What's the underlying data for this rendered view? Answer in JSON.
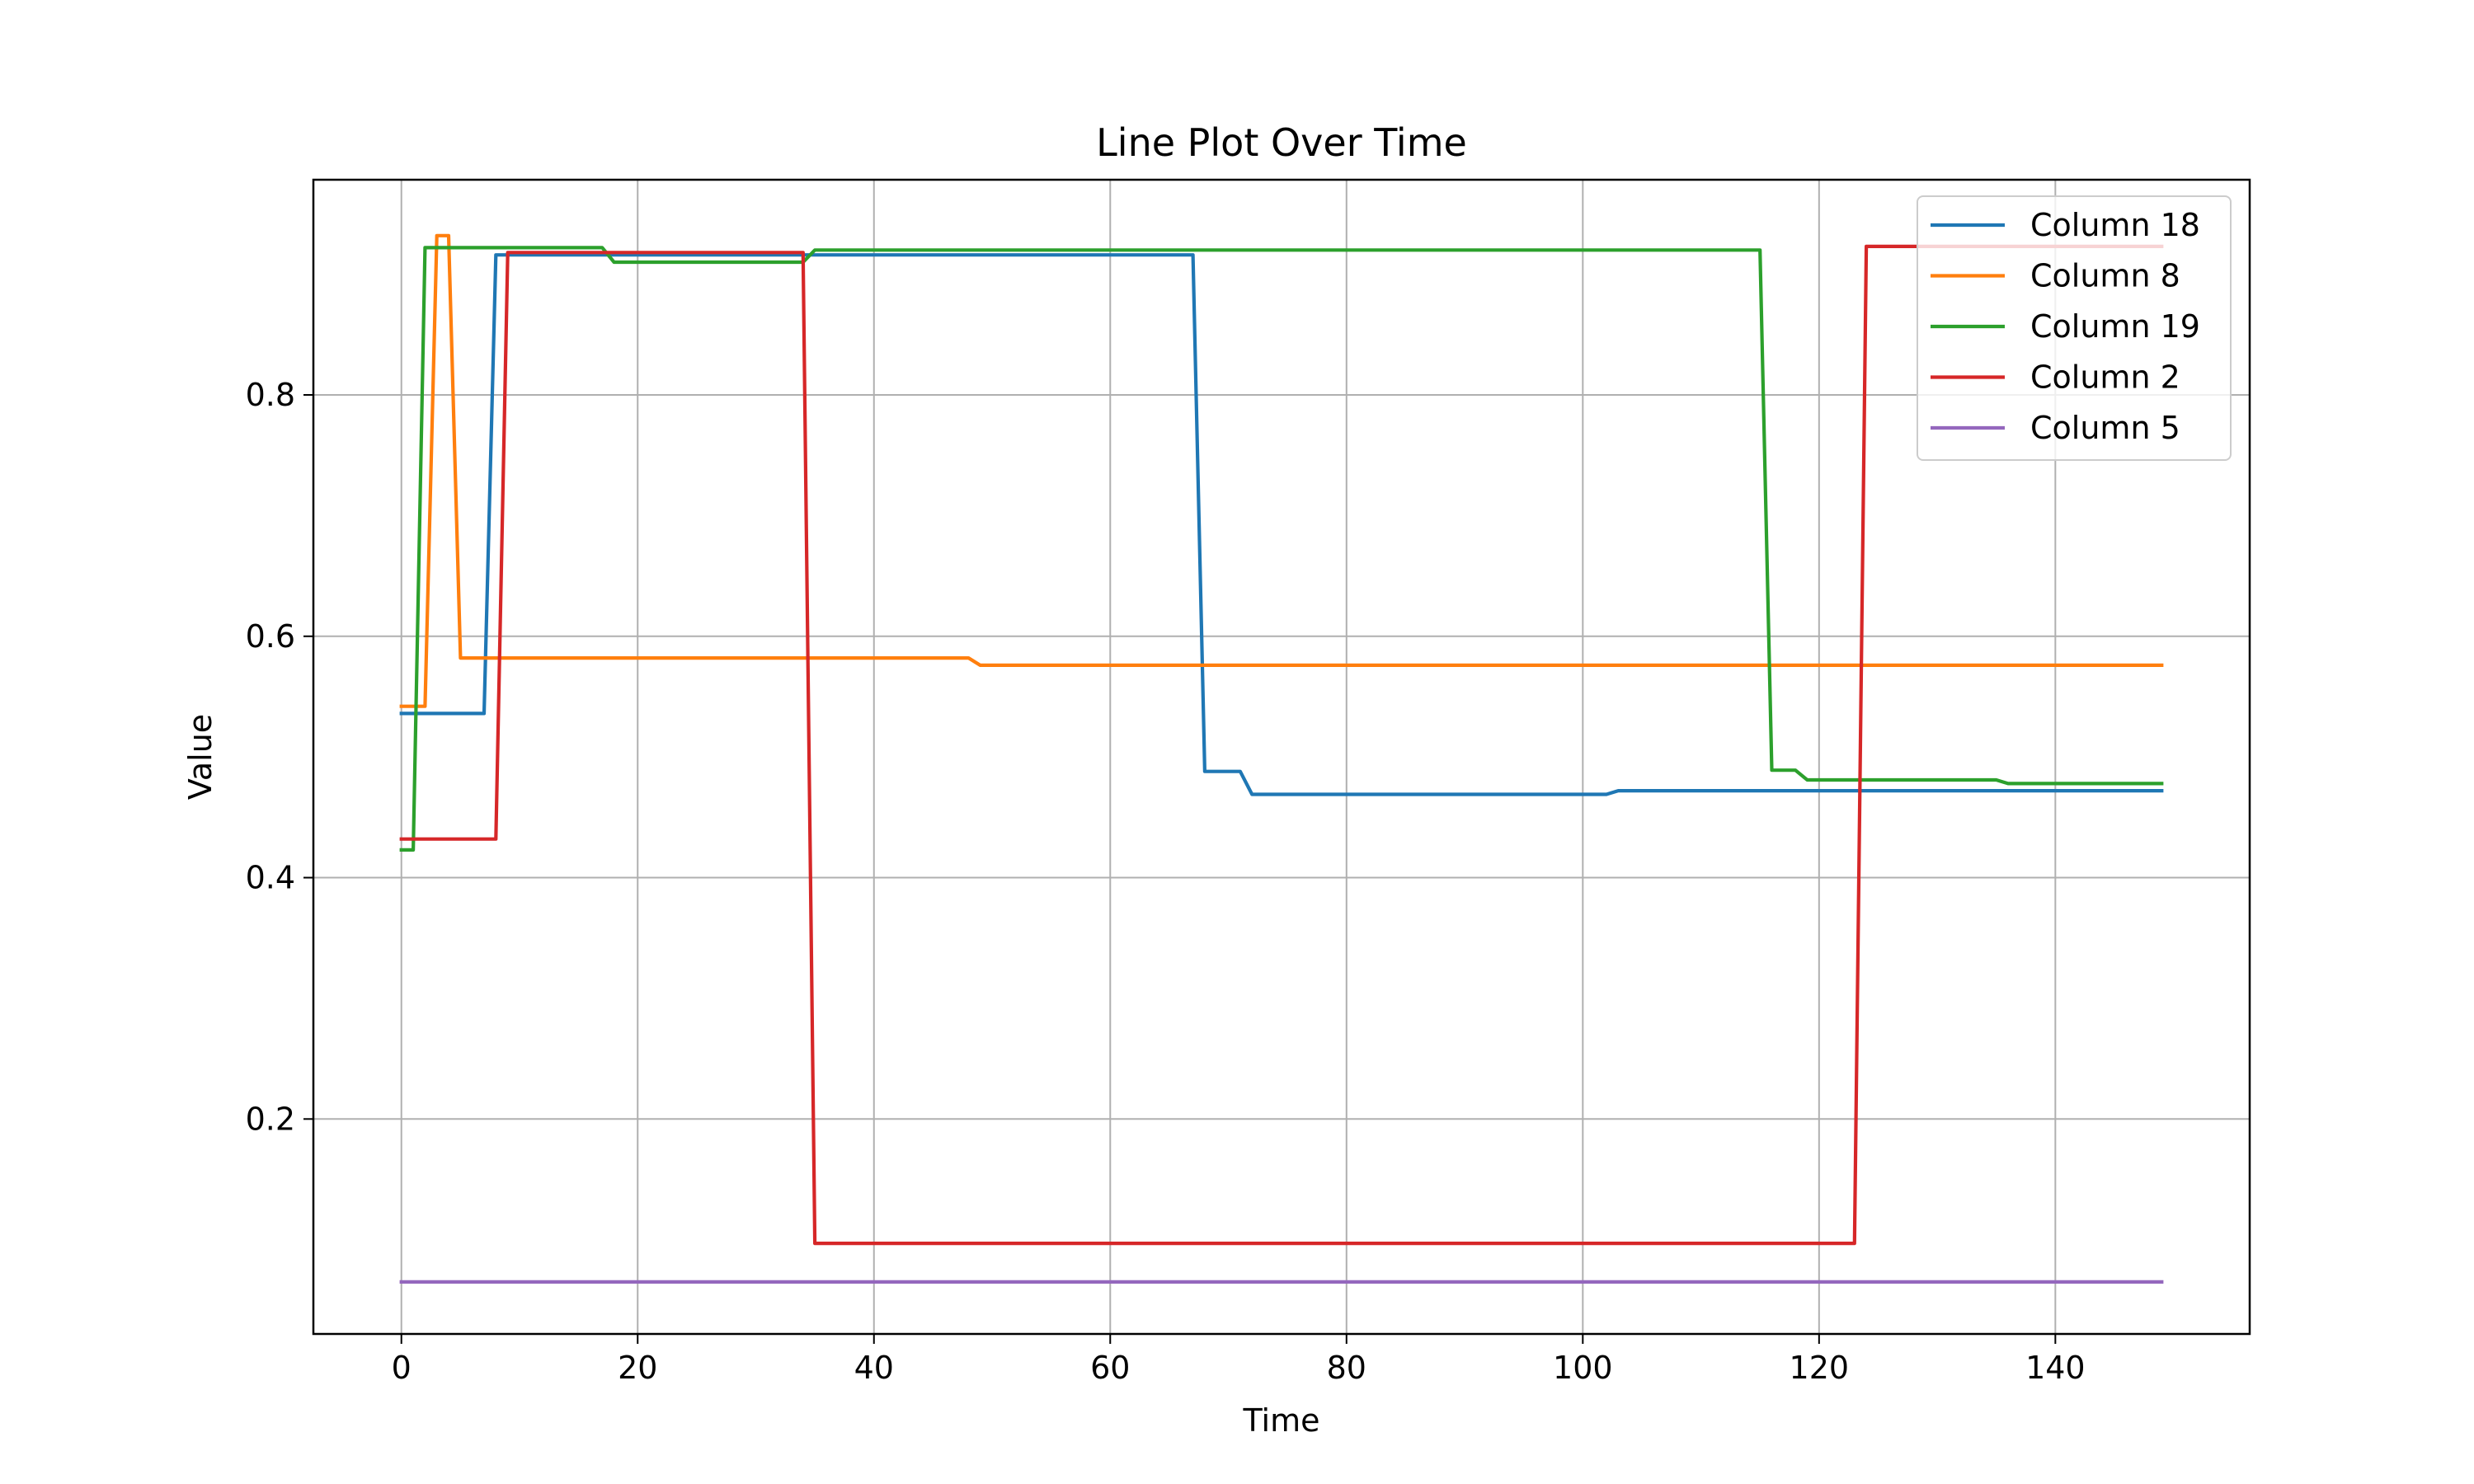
{
  "chart_data": {
    "type": "line",
    "title": "Line Plot Over Time",
    "xlabel": "Time",
    "ylabel": "Value",
    "xlim": [
      -7.45,
      156.45
    ],
    "ylim": [
      0.0219,
      0.9783
    ],
    "xticks": [
      0,
      20,
      40,
      60,
      80,
      100,
      120,
      140
    ],
    "xtick_labels": [
      "0",
      "20",
      "40",
      "60",
      "80",
      "100",
      "120",
      "140"
    ],
    "yticks": [
      0.2,
      0.4,
      0.6,
      0.8
    ],
    "ytick_labels": [
      "0.2",
      "0.4",
      "0.6",
      "0.8"
    ],
    "grid": true,
    "legend": "top-right",
    "series": [
      {
        "name": "Column 18",
        "color": "#1f77b4",
        "points": [
          [
            0,
            0.536
          ],
          [
            7,
            0.536
          ],
          [
            8,
            0.916
          ],
          [
            67,
            0.916
          ],
          [
            68,
            0.488
          ],
          [
            71,
            0.488
          ],
          [
            72,
            0.469
          ],
          [
            102,
            0.469
          ],
          [
            103,
            0.472
          ],
          [
            149,
            0.472
          ]
        ]
      },
      {
        "name": "Column 8",
        "color": "#ff7f0e",
        "points": [
          [
            0,
            0.542
          ],
          [
            2,
            0.542
          ],
          [
            3,
            0.932
          ],
          [
            4,
            0.932
          ],
          [
            5,
            0.582
          ],
          [
            48,
            0.582
          ],
          [
            49,
            0.576
          ],
          [
            149,
            0.576
          ]
        ]
      },
      {
        "name": "Column 19",
        "color": "#2ca02c",
        "points": [
          [
            0,
            0.423
          ],
          [
            1,
            0.423
          ],
          [
            2,
            0.922
          ],
          [
            17,
            0.922
          ],
          [
            18,
            0.91
          ],
          [
            34,
            0.91
          ],
          [
            35,
            0.92
          ],
          [
            115,
            0.92
          ],
          [
            116,
            0.489
          ],
          [
            118,
            0.489
          ],
          [
            119,
            0.481
          ],
          [
            135,
            0.481
          ],
          [
            136,
            0.478
          ],
          [
            149,
            0.478
          ]
        ]
      },
      {
        "name": "Column 2",
        "color": "#d62728",
        "points": [
          [
            0,
            0.432
          ],
          [
            8,
            0.432
          ],
          [
            9,
            0.918
          ],
          [
            34,
            0.918
          ],
          [
            35,
            0.097
          ],
          [
            123,
            0.097
          ],
          [
            124,
            0.923
          ],
          [
            149,
            0.923
          ]
        ]
      },
      {
        "name": "Column 5",
        "color": "#9467bd",
        "points": [
          [
            0,
            0.065
          ],
          [
            149,
            0.065
          ]
        ]
      }
    ]
  }
}
